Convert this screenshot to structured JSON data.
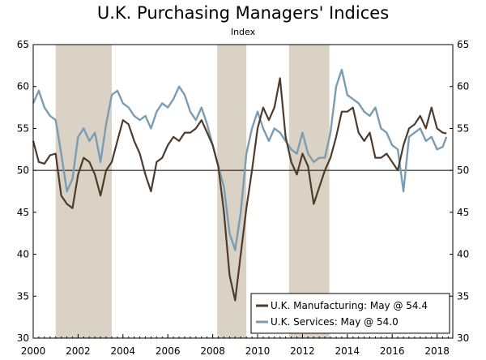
{
  "chart_data": {
    "type": "line",
    "title": "U.K. Purchasing Managers' Indices",
    "subtitle": "Index",
    "xlabel": "",
    "ylabel": "",
    "xlim": [
      2000.0,
      2018.7
    ],
    "ylim": [
      30,
      65
    ],
    "reference_line": 50,
    "x_ticks": [
      2000,
      2002,
      2004,
      2006,
      2008,
      2010,
      2012,
      2014,
      2016,
      2018
    ],
    "x_tick_labels": [
      "2000",
      "2002",
      "2004",
      "2006",
      "2008",
      "2010",
      "2012",
      "2014",
      "2016",
      "2018"
    ],
    "y_ticks": [
      30,
      35,
      40,
      45,
      50,
      55,
      60,
      65
    ],
    "y_tick_labels": [
      "30",
      "35",
      "40",
      "45",
      "50",
      "55",
      "60",
      "65"
    ],
    "shaded_periods": [
      [
        2001.0,
        2003.5
      ],
      [
        2008.2,
        2009.5
      ],
      [
        2011.4,
        2013.2
      ]
    ],
    "legend_position": "bottom-right",
    "series": [
      {
        "name": "U.K. Manufacturing: May @ 54.4",
        "color": "#4d3b2d",
        "x": [
          2000.0,
          2000.25,
          2000.5,
          2000.75,
          2001.0,
          2001.25,
          2001.5,
          2001.75,
          2002.0,
          2002.25,
          2002.5,
          2002.75,
          2003.0,
          2003.25,
          2003.5,
          2003.75,
          2004.0,
          2004.25,
          2004.5,
          2004.75,
          2005.0,
          2005.25,
          2005.5,
          2005.75,
          2006.0,
          2006.25,
          2006.5,
          2006.75,
          2007.0,
          2007.25,
          2007.5,
          2007.75,
          2008.0,
          2008.25,
          2008.5,
          2008.75,
          2009.0,
          2009.25,
          2009.5,
          2009.75,
          2010.0,
          2010.25,
          2010.5,
          2010.75,
          2011.0,
          2011.25,
          2011.5,
          2011.75,
          2012.0,
          2012.25,
          2012.5,
          2012.75,
          2013.0,
          2013.25,
          2013.5,
          2013.75,
          2014.0,
          2014.25,
          2014.5,
          2014.75,
          2015.0,
          2015.25,
          2015.5,
          2015.75,
          2016.0,
          2016.25,
          2016.5,
          2016.75,
          2017.0,
          2017.25,
          2017.5,
          2017.75,
          2018.0,
          2018.25,
          2018.42
        ],
        "values": [
          53.5,
          51.0,
          50.8,
          51.8,
          52.0,
          47.0,
          46.0,
          45.5,
          49.5,
          51.5,
          51.0,
          49.5,
          47.0,
          50.0,
          51.0,
          53.5,
          56.0,
          55.5,
          53.5,
          52.0,
          49.5,
          47.5,
          51.0,
          51.5,
          53.0,
          54.0,
          53.5,
          54.5,
          54.5,
          55.0,
          56.0,
          54.5,
          53.0,
          50.5,
          45.0,
          37.5,
          34.5,
          40.0,
          45.5,
          50.0,
          55.0,
          57.5,
          56.0,
          57.5,
          61.0,
          54.0,
          51.0,
          49.5,
          52.0,
          50.5,
          46.0,
          48.0,
          50.0,
          51.5,
          54.0,
          57.0,
          57.0,
          57.5,
          54.5,
          53.5,
          54.5,
          51.5,
          51.5,
          52.0,
          51.0,
          50.0,
          53.0,
          55.0,
          55.5,
          56.5,
          55.0,
          57.5,
          55.0,
          54.5,
          54.4
        ]
      },
      {
        "name": "U.K. Services: May @ 54.0",
        "color": "#7c9cb4",
        "x": [
          2000.0,
          2000.25,
          2000.5,
          2000.75,
          2001.0,
          2001.25,
          2001.5,
          2001.75,
          2002.0,
          2002.25,
          2002.5,
          2002.75,
          2003.0,
          2003.25,
          2003.5,
          2003.75,
          2004.0,
          2004.25,
          2004.5,
          2004.75,
          2005.0,
          2005.25,
          2005.5,
          2005.75,
          2006.0,
          2006.25,
          2006.5,
          2006.75,
          2007.0,
          2007.25,
          2007.5,
          2007.75,
          2008.0,
          2008.25,
          2008.5,
          2008.75,
          2009.0,
          2009.25,
          2009.5,
          2009.75,
          2010.0,
          2010.25,
          2010.5,
          2010.75,
          2011.0,
          2011.25,
          2011.5,
          2011.75,
          2012.0,
          2012.25,
          2012.5,
          2012.75,
          2013.0,
          2013.25,
          2013.5,
          2013.75,
          2014.0,
          2014.25,
          2014.5,
          2014.75,
          2015.0,
          2015.25,
          2015.5,
          2015.75,
          2016.0,
          2016.25,
          2016.5,
          2016.75,
          2017.0,
          2017.25,
          2017.5,
          2017.75,
          2018.0,
          2018.25,
          2018.42
        ],
        "values": [
          58.0,
          59.5,
          57.5,
          56.5,
          56.0,
          52.0,
          47.5,
          49.0,
          54.0,
          55.0,
          53.5,
          54.5,
          51.0,
          55.5,
          59.0,
          59.5,
          58.0,
          57.5,
          56.5,
          56.0,
          56.5,
          55.0,
          57.0,
          58.0,
          57.5,
          58.5,
          60.0,
          59.0,
          57.0,
          56.0,
          57.5,
          55.5,
          53.0,
          50.5,
          48.0,
          42.5,
          40.5,
          45.0,
          52.0,
          55.0,
          57.0,
          55.0,
          53.5,
          55.0,
          54.5,
          53.5,
          52.5,
          52.0,
          54.5,
          52.0,
          51.0,
          51.5,
          51.5,
          54.5,
          60.0,
          62.0,
          59.0,
          58.5,
          58.0,
          57.0,
          56.5,
          57.5,
          55.0,
          54.5,
          53.0,
          52.5,
          47.5,
          54.0,
          54.5,
          55.0,
          53.5,
          54.0,
          52.5,
          52.8,
          54.0
        ]
      }
    ]
  }
}
